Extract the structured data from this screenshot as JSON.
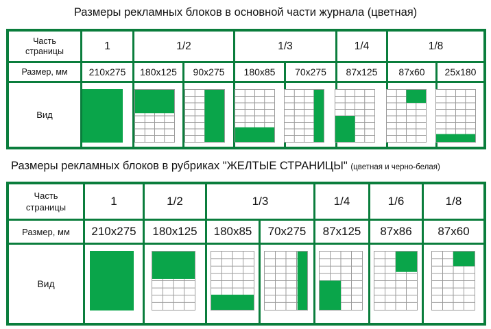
{
  "table1": {
    "title": "Размеры рекламных блоков в основной части журнала (цветная)",
    "row_part_label": "Часть\nстраницы",
    "row_size_label": "Размер, мм",
    "row_view_label": "Вид",
    "parts": [
      "1",
      "1/2",
      "1/3",
      "1/4",
      "1/8"
    ],
    "sizes": [
      "210x275",
      "180x125",
      "90x275",
      "180x85",
      "70x275",
      "87x125",
      "87x60",
      "25x180"
    ]
  },
  "table2": {
    "title": "Размеры рекламных блоков в рубриках  \"ЖЕЛТЫЕ СТРАНИЦЫ\"",
    "title_note": "(цветная и черно-белая)",
    "row_part_label": "Часть\nстраницы",
    "row_size_label": "Размер, мм",
    "row_view_label": "Вид",
    "parts": [
      "1",
      "1/2",
      "1/3",
      "1/4",
      "1/6",
      "1/8"
    ],
    "sizes": [
      "210x275",
      "180x125",
      "180x85",
      "70x275",
      "87x125",
      "87x86",
      "87x60"
    ]
  },
  "colors": {
    "accent": "#0a7d3c",
    "fill": "#0aa54a",
    "grid_line": "#9a9a9a"
  }
}
